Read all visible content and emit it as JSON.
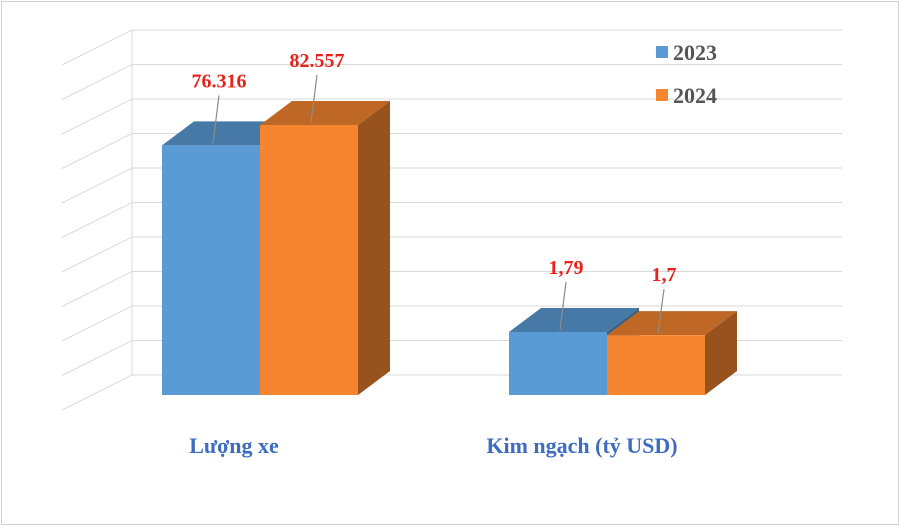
{
  "chart_data": {
    "type": "bar",
    "categories": [
      "Lượng xe",
      "Kim ngạch (tỷ USD)"
    ],
    "series": [
      {
        "name": "2023",
        "color": "#5b9bd5",
        "values": [
          76316,
          1.79
        ],
        "value_labels": [
          "76.316",
          "1,79"
        ]
      },
      {
        "name": "2024",
        "color": "#f5852f",
        "values": [
          82557,
          1.7
        ],
        "value_labels": [
          "82.557",
          "1,7"
        ]
      }
    ],
    "legend_position": "top-right",
    "grid": true,
    "style": "3d-column",
    "axis_labels_visible": false
  }
}
